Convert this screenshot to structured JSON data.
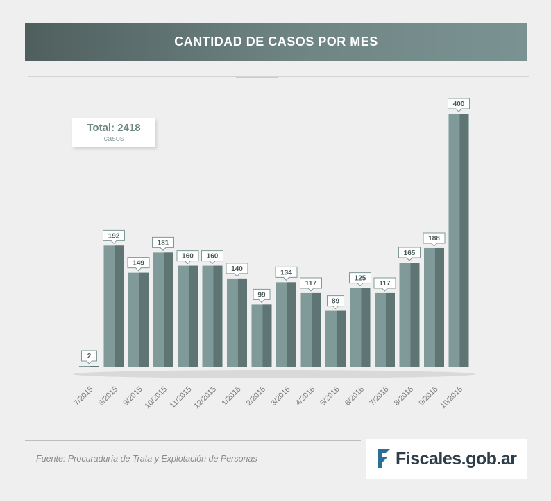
{
  "header": {
    "title": "CANTIDAD DE CASOS POR MES"
  },
  "total": {
    "label": "Total: 2418",
    "unit": "casos"
  },
  "footer": {
    "source": "Fuente: Procuraduría de Trata y Explotación de Personas",
    "logo_text": "Fiscales.gob.ar"
  },
  "colors": {
    "banner": "#5f7372",
    "bar_light": "#7f9a98",
    "bar_dark": "#5e7573",
    "label_border": "#7e9896",
    "label_text": "#4a5a59",
    "tick_text": "#7a7a7a",
    "logo_flag": "#2a6f97"
  },
  "chart_data": {
    "type": "bar",
    "categories": [
      "7/2015",
      "8/2015",
      "9/2015",
      "10/2015",
      "11/2015",
      "12/2015",
      "1/2016",
      "2/2016",
      "3/2016",
      "4/2016",
      "5/2016",
      "6/2016",
      "7/2016",
      "8/2016",
      "9/2016",
      "10/2016"
    ],
    "values": [
      2,
      192,
      149,
      181,
      160,
      160,
      140,
      99,
      134,
      117,
      89,
      125,
      117,
      165,
      188,
      400
    ],
    "ylim": [
      0,
      400
    ],
    "grid": false,
    "data_labels": true
  }
}
